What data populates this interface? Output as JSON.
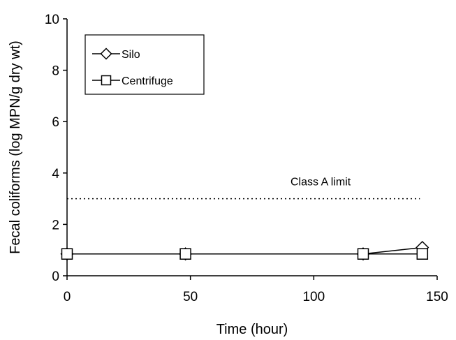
{
  "chart_data": {
    "type": "line",
    "title": "",
    "xlabel": "Time (hour)",
    "ylabel": "Fecal coliforms (log MPN/g dry wt)",
    "xlim": [
      0,
      150
    ],
    "ylim": [
      0,
      10
    ],
    "xticks": [
      0,
      50,
      100,
      150
    ],
    "yticks": [
      0,
      2,
      4,
      6,
      8,
      10
    ],
    "grid": false,
    "legend": {
      "placement": "top-left"
    },
    "series": [
      {
        "name": "Silo",
        "marker": "diamond",
        "color": "#000000",
        "x": [
          0,
          48,
          120,
          144
        ],
        "y": [
          0.85,
          0.85,
          0.85,
          1.1
        ]
      },
      {
        "name": "Centrifuge",
        "marker": "square",
        "color": "#000000",
        "x": [
          0,
          48,
          120,
          144
        ],
        "y": [
          0.85,
          0.85,
          0.85,
          0.85
        ]
      }
    ],
    "reference_line": {
      "label": "Class A limit",
      "y": 3,
      "style": "dotted"
    }
  }
}
